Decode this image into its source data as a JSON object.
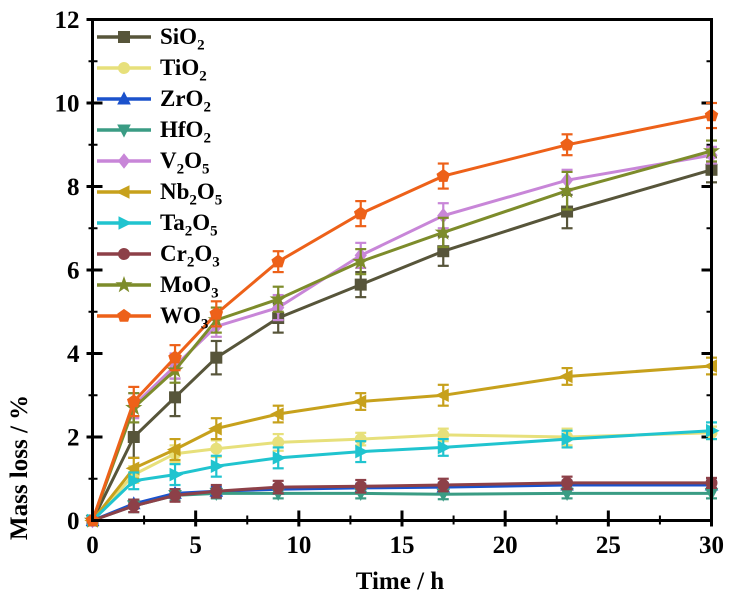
{
  "figure": {
    "background": "#ffffff",
    "axis_color": "#000000"
  },
  "chart_data": {
    "type": "line",
    "title": "",
    "xlabel": "Time / h",
    "ylabel": "Mass loss / %",
    "xlim": [
      0,
      30
    ],
    "ylim": [
      0,
      12
    ],
    "x_major_ticks": [
      0,
      5,
      10,
      15,
      20,
      25,
      30
    ],
    "x_minor_ticks": [
      2.5,
      7.5,
      12.5,
      17.5,
      22.5,
      27.5
    ],
    "y_major_ticks": [
      0,
      2,
      4,
      6,
      8,
      10,
      12
    ],
    "y_minor_ticks": [
      1,
      3,
      5,
      7,
      9,
      11
    ],
    "grid": false,
    "legend_position": "upper-left",
    "x": [
      0,
      2,
      4,
      6,
      9,
      13,
      17,
      23,
      30
    ],
    "series": [
      {
        "id": "sio2",
        "name": "SiO2",
        "label_parts": [
          {
            "t": "SiO"
          },
          {
            "t": "2",
            "sub": true
          }
        ],
        "color": "#57553a",
        "marker": "square",
        "values": [
          0,
          2.0,
          2.95,
          3.9,
          4.85,
          5.65,
          6.45,
          7.4,
          8.4
        ],
        "errors": [
          0,
          0.5,
          0.45,
          0.4,
          0.35,
          0.3,
          0.35,
          0.4,
          0.3
        ]
      },
      {
        "id": "tio2",
        "name": "TiO2",
        "label_parts": [
          {
            "t": "TiO"
          },
          {
            "t": "2",
            "sub": true
          }
        ],
        "color": "#e7e07b",
        "marker": "circle",
        "values": [
          0,
          1.1,
          1.6,
          1.72,
          1.87,
          1.95,
          2.05,
          2.0,
          2.1
        ],
        "errors": [
          0,
          0.2,
          0.2,
          0.2,
          0.2,
          0.15,
          0.15,
          0.2,
          0.15
        ]
      },
      {
        "id": "zro2",
        "name": "ZrO2",
        "label_parts": [
          {
            "t": "ZrO"
          },
          {
            "t": "2",
            "sub": true
          }
        ],
        "color": "#1b52cc",
        "marker": "triangle-up",
        "values": [
          0,
          0.4,
          0.65,
          0.7,
          0.75,
          0.78,
          0.8,
          0.85,
          0.85
        ],
        "errors": [
          0,
          0.1,
          0.1,
          0.1,
          0.1,
          0.1,
          0.1,
          0.1,
          0.1
        ]
      },
      {
        "id": "hfo2",
        "name": "HfO2",
        "label_parts": [
          {
            "t": "HfO"
          },
          {
            "t": "2",
            "sub": true
          }
        ],
        "color": "#3a9c84",
        "marker": "triangle-down",
        "values": [
          0,
          0.35,
          0.6,
          0.65,
          0.65,
          0.65,
          0.63,
          0.65,
          0.65
        ],
        "errors": [
          0,
          0.15,
          0.12,
          0.12,
          0.12,
          0.12,
          0.12,
          0.12,
          0.12
        ]
      },
      {
        "id": "v2o5",
        "name": "V2O5",
        "label_parts": [
          {
            "t": "V"
          },
          {
            "t": "2",
            "sub": true
          },
          {
            "t": "O"
          },
          {
            "t": "5",
            "sub": true
          }
        ],
        "color": "#c886d8",
        "marker": "diamond",
        "values": [
          0,
          2.75,
          3.7,
          4.65,
          5.1,
          6.35,
          7.3,
          8.15,
          8.75
        ],
        "errors": [
          0,
          0.3,
          0.3,
          0.25,
          0.3,
          0.3,
          0.3,
          0.25,
          0.2
        ]
      },
      {
        "id": "nb2o5",
        "name": "Nb2O5",
        "label_parts": [
          {
            "t": "Nb"
          },
          {
            "t": "2",
            "sub": true
          },
          {
            "t": "O"
          },
          {
            "t": "5",
            "sub": true
          }
        ],
        "color": "#c7a11c",
        "marker": "triangle-left",
        "values": [
          0,
          1.25,
          1.7,
          2.2,
          2.55,
          2.85,
          3.0,
          3.45,
          3.7
        ],
        "errors": [
          0,
          0.25,
          0.25,
          0.25,
          0.2,
          0.2,
          0.25,
          0.2,
          0.2
        ]
      },
      {
        "id": "ta2o5",
        "name": "Ta2O5",
        "label_parts": [
          {
            "t": "Ta"
          },
          {
            "t": "2",
            "sub": true
          },
          {
            "t": "O"
          },
          {
            "t": "5",
            "sub": true
          }
        ],
        "color": "#20c4cf",
        "marker": "triangle-right",
        "values": [
          0,
          0.95,
          1.1,
          1.3,
          1.5,
          1.65,
          1.75,
          1.95,
          2.15
        ],
        "errors": [
          0,
          0.2,
          0.25,
          0.25,
          0.25,
          0.25,
          0.2,
          0.2,
          0.2
        ]
      },
      {
        "id": "cr2o3",
        "name": "Cr2O3",
        "label_parts": [
          {
            "t": "Cr"
          },
          {
            "t": "2",
            "sub": true
          },
          {
            "t": "O"
          },
          {
            "t": "3",
            "sub": true
          }
        ],
        "color": "#8d4048",
        "marker": "circle",
        "values": [
          0,
          0.35,
          0.6,
          0.7,
          0.8,
          0.82,
          0.85,
          0.9,
          0.9
        ],
        "errors": [
          0,
          0.15,
          0.15,
          0.15,
          0.15,
          0.15,
          0.15,
          0.15,
          0.12
        ]
      },
      {
        "id": "moo3",
        "name": "MoO3",
        "label_parts": [
          {
            "t": "MoO"
          },
          {
            "t": "3",
            "sub": true
          }
        ],
        "color": "#7d8c2b",
        "marker": "star",
        "values": [
          0,
          2.7,
          3.6,
          4.8,
          5.3,
          6.2,
          6.9,
          7.9,
          8.85
        ],
        "errors": [
          0,
          0.35,
          0.3,
          0.3,
          0.3,
          0.3,
          0.35,
          0.45,
          0.25
        ]
      },
      {
        "id": "wo3",
        "name": "WO3",
        "label_parts": [
          {
            "t": "WO"
          },
          {
            "t": "3",
            "sub": true
          }
        ],
        "color": "#ed6119",
        "marker": "pentagon",
        "values": [
          0,
          2.85,
          3.9,
          4.95,
          6.2,
          7.35,
          8.25,
          9.0,
          9.7
        ],
        "errors": [
          0,
          0.35,
          0.3,
          0.3,
          0.25,
          0.3,
          0.3,
          0.25,
          0.3
        ]
      }
    ]
  }
}
